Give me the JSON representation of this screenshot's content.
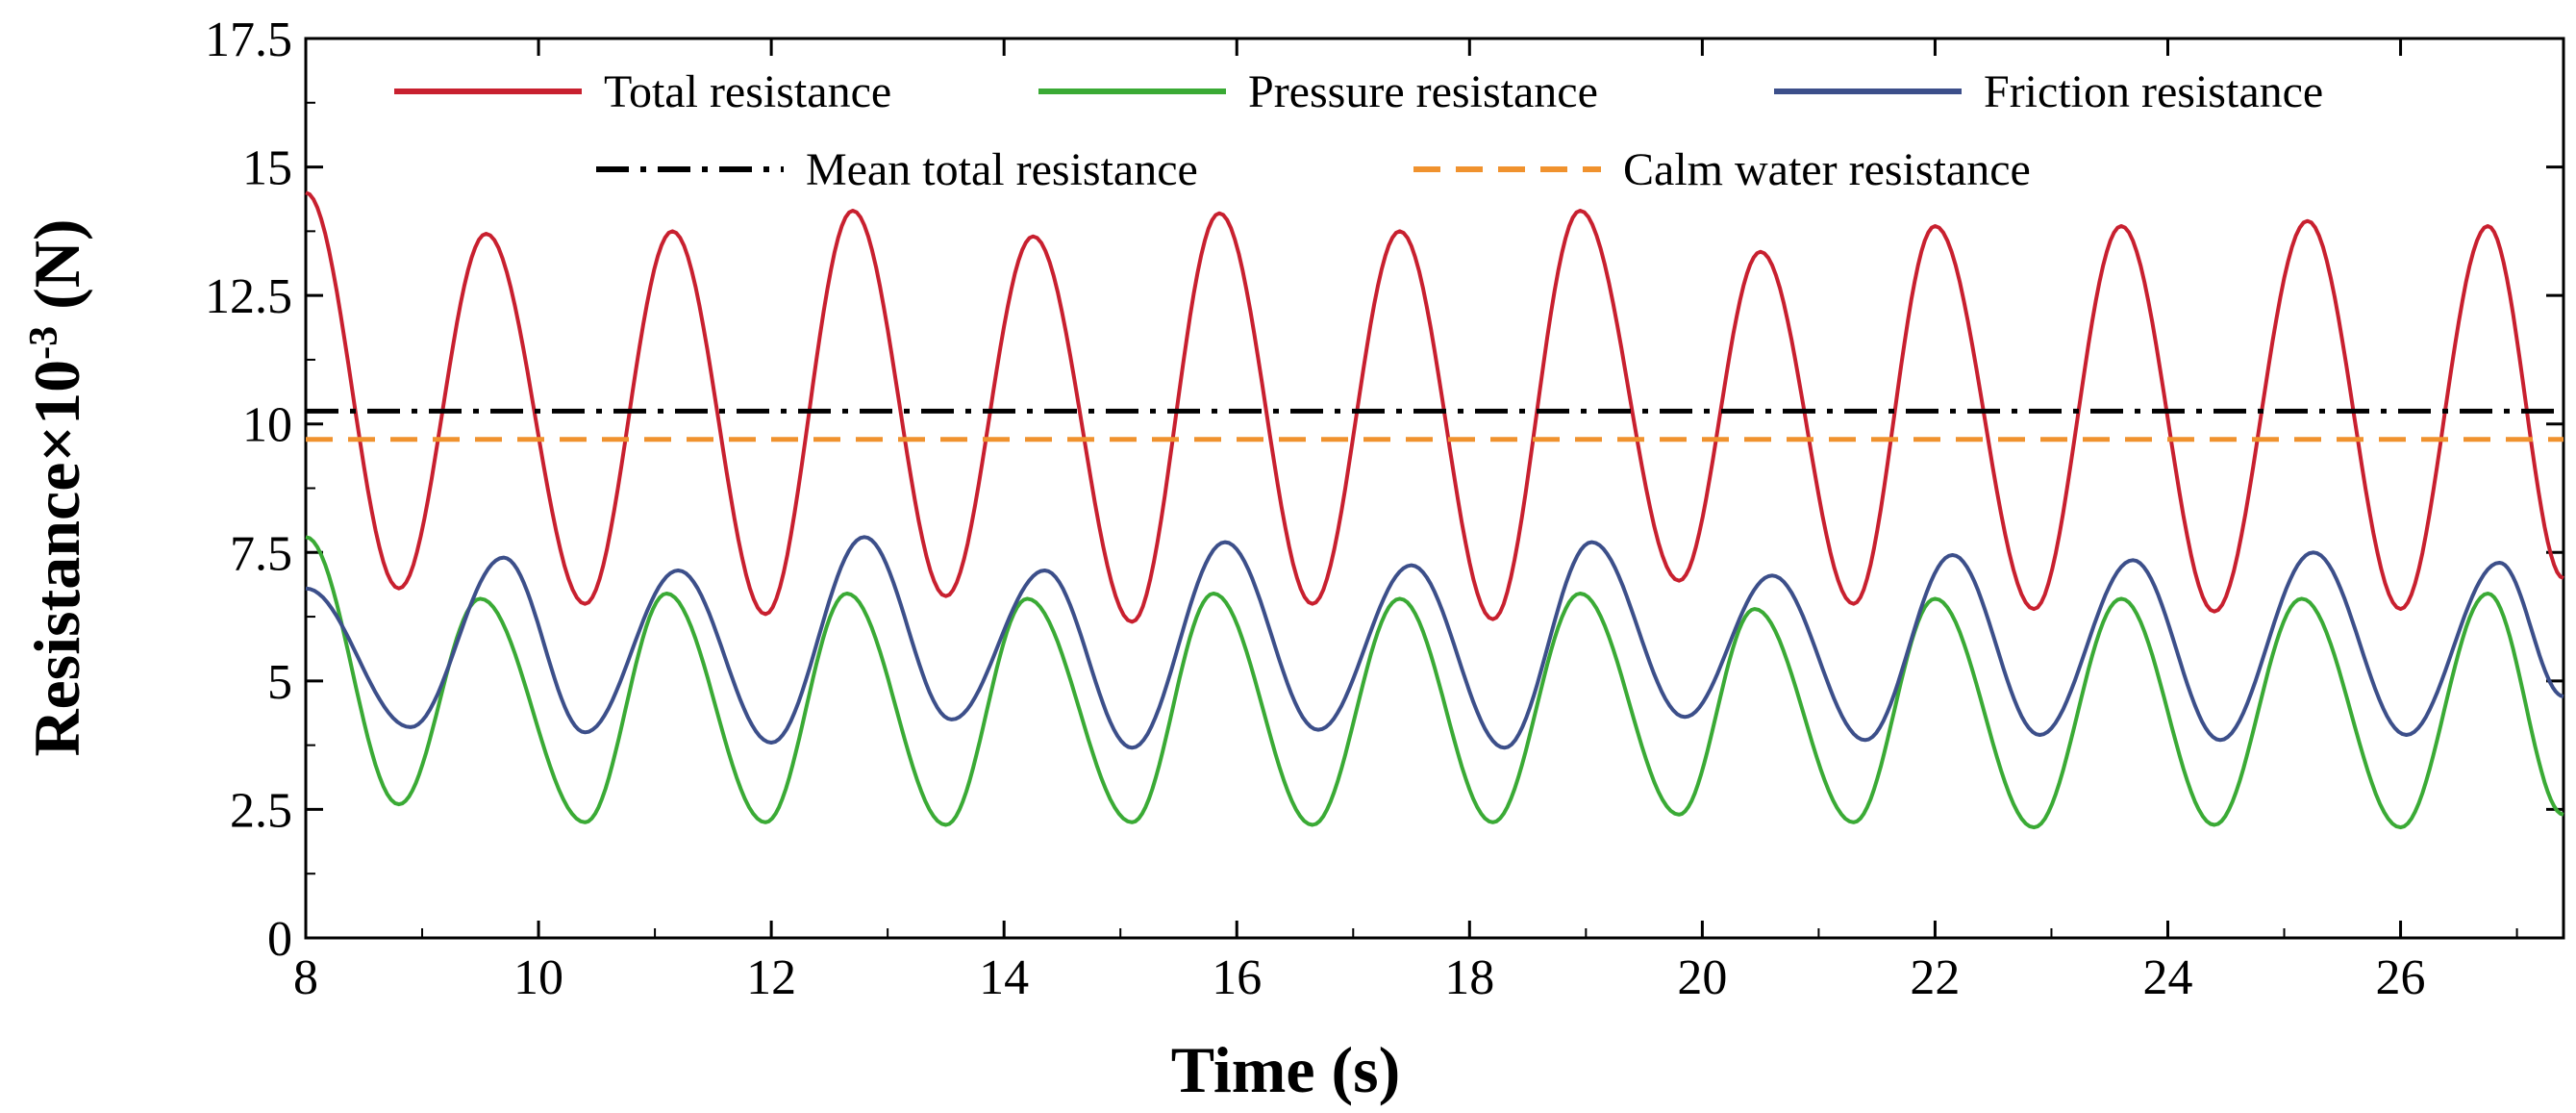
{
  "chart_data": {
    "type": "line",
    "title": "",
    "xlabel": "Time (s)",
    "ylabel": "Resistance×10",
    "ylabel_exponent": "-3",
    "ylabel_unit": " (N)",
    "xlim": [
      8,
      27.4
    ],
    "ylim": [
      0,
      17.5
    ],
    "x_ticks": [
      8,
      10,
      12,
      14,
      16,
      18,
      20,
      22,
      24,
      26
    ],
    "x_tick_labels": [
      "8",
      "10",
      "12",
      "14",
      "16",
      "18",
      "20",
      "22",
      "24",
      "26"
    ],
    "y_ticks": [
      0,
      2.5,
      5,
      7.5,
      10,
      12.5,
      15,
      17.5
    ],
    "y_tick_labels": [
      "0",
      "2.5",
      "5",
      "7.5",
      "10",
      "12.5",
      "15",
      "17.5"
    ],
    "grid": false,
    "legend_position": "top",
    "series": [
      {
        "name": "Total resistance",
        "color": "#c8202f",
        "style": "solid",
        "x": [
          8.0,
          8.8,
          9.55,
          10.4,
          11.15,
          11.95,
          12.7,
          13.5,
          14.25,
          15.1,
          15.85,
          16.65,
          17.4,
          18.2,
          18.95,
          19.8,
          20.5,
          21.3,
          22.0,
          22.85,
          23.6,
          24.4,
          25.2,
          26.0,
          26.75,
          27.4
        ],
        "values": [
          14.5,
          6.8,
          13.7,
          6.5,
          13.75,
          6.3,
          14.15,
          6.65,
          13.65,
          6.15,
          14.1,
          6.5,
          13.75,
          6.2,
          14.15,
          6.95,
          13.35,
          6.5,
          13.85,
          6.4,
          13.85,
          6.35,
          13.95,
          6.4,
          13.85,
          7.0
        ]
      },
      {
        "name": "Pressure resistance",
        "color": "#3aaa35",
        "style": "solid",
        "x": [
          8.0,
          8.8,
          9.5,
          10.4,
          11.1,
          11.95,
          12.65,
          13.5,
          14.2,
          15.1,
          15.8,
          16.65,
          17.4,
          18.2,
          18.95,
          19.8,
          20.45,
          21.3,
          22.0,
          22.85,
          23.6,
          24.4,
          25.15,
          26.0,
          26.75,
          27.4
        ],
        "values": [
          7.8,
          2.6,
          6.6,
          2.25,
          6.7,
          2.25,
          6.7,
          2.2,
          6.6,
          2.25,
          6.7,
          2.2,
          6.6,
          2.25,
          6.7,
          2.4,
          6.4,
          2.25,
          6.6,
          2.15,
          6.6,
          2.2,
          6.6,
          2.15,
          6.7,
          2.4
        ]
      },
      {
        "name": "Friction resistance",
        "color": "#3c4f8a",
        "style": "solid",
        "x": [
          8.0,
          8.9,
          9.7,
          10.4,
          11.2,
          12.0,
          12.8,
          13.55,
          14.35,
          15.1,
          15.9,
          16.7,
          17.5,
          18.3,
          19.05,
          19.85,
          20.6,
          21.4,
          22.15,
          22.9,
          23.7,
          24.45,
          25.25,
          26.05,
          26.85,
          27.4
        ],
        "values": [
          6.8,
          4.1,
          7.4,
          4.0,
          7.15,
          3.8,
          7.8,
          4.25,
          7.15,
          3.7,
          7.7,
          4.05,
          7.25,
          3.7,
          7.7,
          4.3,
          7.05,
          3.85,
          7.45,
          3.95,
          7.35,
          3.85,
          7.5,
          3.95,
          7.3,
          4.7
        ]
      },
      {
        "name": "Mean total resistance",
        "color": "#000000",
        "style": "dashdot",
        "x": [
          8,
          27.4
        ],
        "values": [
          10.25,
          10.25
        ]
      },
      {
        "name": "Calm water resistance",
        "color": "#f0922e",
        "style": "dashed",
        "x": [
          8,
          27.4
        ],
        "values": [
          9.7,
          9.7
        ]
      }
    ]
  }
}
